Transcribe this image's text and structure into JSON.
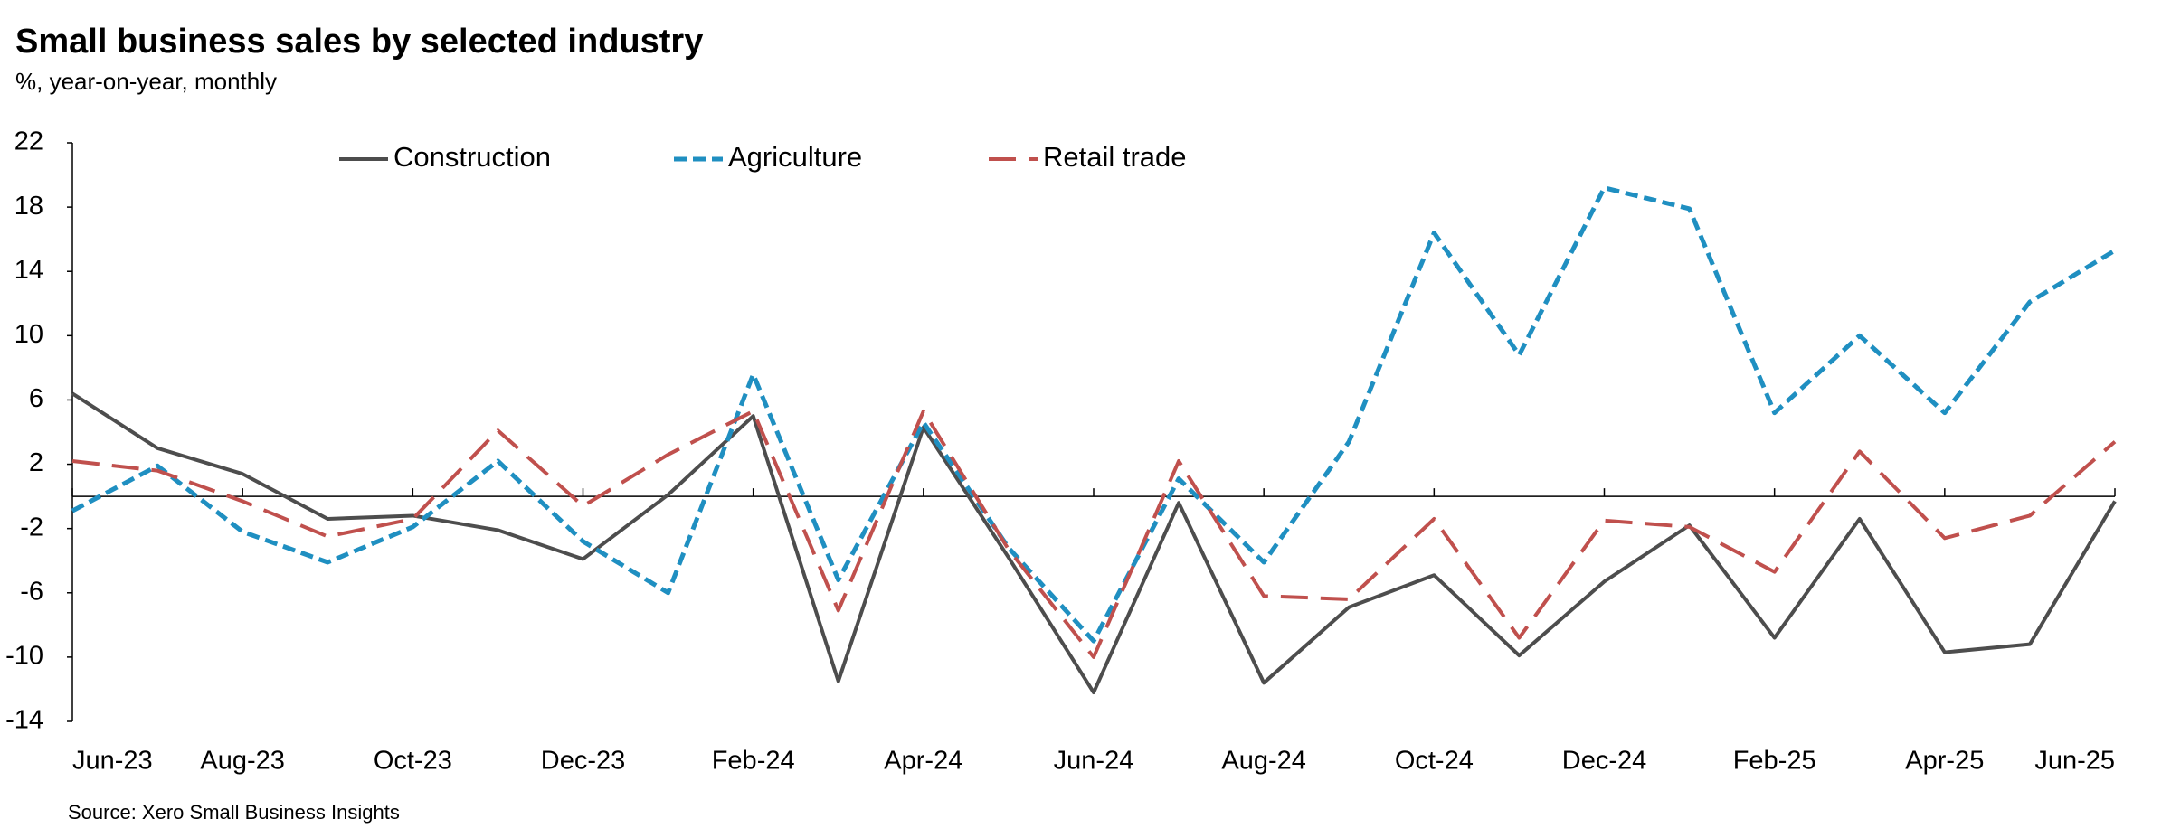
{
  "chart_data": {
    "type": "line",
    "title": "Small business sales by selected industry",
    "subtitle": "%, year-on-year, monthly",
    "source": "Source: Xero Small Business Insights",
    "categories": [
      "Jun-23",
      null,
      "Aug-23",
      null,
      "Oct-23",
      null,
      "Dec-23",
      null,
      "Feb-24",
      null,
      "Apr-24",
      null,
      "Jun-24",
      null,
      "Aug-24",
      null,
      "Oct-24",
      null,
      "Dec-24",
      null,
      "Feb-25",
      null,
      "Apr-25",
      null,
      "Jun-25"
    ],
    "series": [
      {
        "name": "Construction",
        "color": "#4d4d4d",
        "dash": "solid",
        "values": [
          6.4,
          3.0,
          1.4,
          -1.4,
          -1.2,
          -2.1,
          -3.9,
          0.1,
          5.0,
          -11.5,
          4.3,
          -3.8,
          -12.2,
          -0.4,
          -11.6,
          -6.9,
          -4.9,
          -9.9,
          -5.3,
          -1.8,
          -8.8,
          -1.4,
          -9.7,
          -9.2,
          -0.3
        ]
      },
      {
        "name": "Agriculture",
        "color": "#1f8fc1",
        "dash": "short",
        "values": [
          -0.9,
          1.9,
          -2.2,
          -4.1,
          -1.9,
          2.2,
          -2.8,
          -6.0,
          7.6,
          -5.2,
          4.6,
          -3.2,
          -9.0,
          1.1,
          -4.1,
          3.4,
          16.4,
          8.8,
          19.2,
          17.9,
          5.2,
          10.0,
          5.2,
          12.1,
          15.3
        ]
      },
      {
        "name": "Retail trade",
        "color": "#c0504d",
        "dash": "long",
        "values": [
          2.2,
          1.6,
          -0.3,
          -2.5,
          -1.4,
          4.1,
          -0.6,
          2.6,
          5.3,
          -7.1,
          5.3,
          -3.3,
          -10.0,
          2.2,
          -6.2,
          -6.4,
          -1.4,
          -8.8,
          -1.5,
          -1.9,
          -4.7,
          2.8,
          -2.6,
          -1.2,
          3.4
        ]
      }
    ],
    "ylim": [
      -14,
      22
    ],
    "yticks": [
      -14,
      -10,
      -6,
      -2,
      2,
      6,
      10,
      14,
      18,
      22
    ],
    "grid": false,
    "legend": "top"
  }
}
